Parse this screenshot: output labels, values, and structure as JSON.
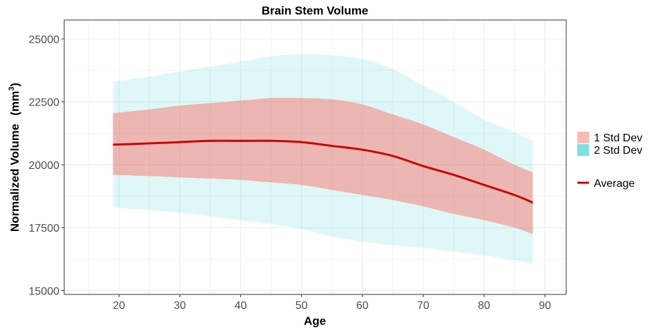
{
  "chart_data": {
    "type": "area",
    "title": "Brain Stem Volume",
    "xlabel": "Age",
    "ylabel_main": "Normalized Volume",
    "ylabel_unit": "(mm",
    "ylabel_sup": "3",
    "ylabel_close": ")",
    "xlim": [
      11,
      93.5
    ],
    "ylim": [
      14850,
      25750
    ],
    "x_ticks": [
      20,
      30,
      40,
      50,
      60,
      70,
      80,
      90
    ],
    "y_ticks": [
      15000,
      17500,
      20000,
      22500,
      25000
    ],
    "grid": true,
    "legend_position": "right",
    "colors": {
      "sd1": "#f8766d",
      "sd2": "#00bfc4",
      "average": "#cc0000",
      "grid": "#ebebeb",
      "border": "#333333"
    },
    "x": [
      19,
      25,
      30,
      35,
      40,
      45,
      50,
      55,
      60,
      65,
      70,
      75,
      80,
      85,
      88
    ],
    "series": [
      {
        "name": "Average",
        "values": [
          20800,
          20850,
          20900,
          20950,
          20950,
          20950,
          20900,
          20750,
          20600,
          20350,
          19950,
          19600,
          19200,
          18800,
          18500
        ]
      },
      {
        "name": "1 Std Dev",
        "upper": [
          22050,
          22200,
          22350,
          22450,
          22550,
          22650,
          22650,
          22600,
          22400,
          22000,
          21600,
          21100,
          20600,
          20000,
          19700
        ],
        "lower": [
          19600,
          19550,
          19500,
          19450,
          19400,
          19300,
          19200,
          19000,
          18800,
          18600,
          18350,
          18050,
          17800,
          17500,
          17250
        ]
      },
      {
        "name": "2 Std Dev",
        "upper": [
          23300,
          23500,
          23700,
          23900,
          24100,
          24300,
          24400,
          24350,
          24200,
          23800,
          23150,
          22500,
          21800,
          21300,
          20950
        ],
        "lower": [
          18300,
          18200,
          18100,
          17950,
          17800,
          17650,
          17450,
          17150,
          16950,
          16800,
          16700,
          16550,
          16400,
          16200,
          16050
        ]
      }
    ],
    "legend": [
      "1 Std Dev",
      "2 Std Dev",
      "Average"
    ]
  }
}
